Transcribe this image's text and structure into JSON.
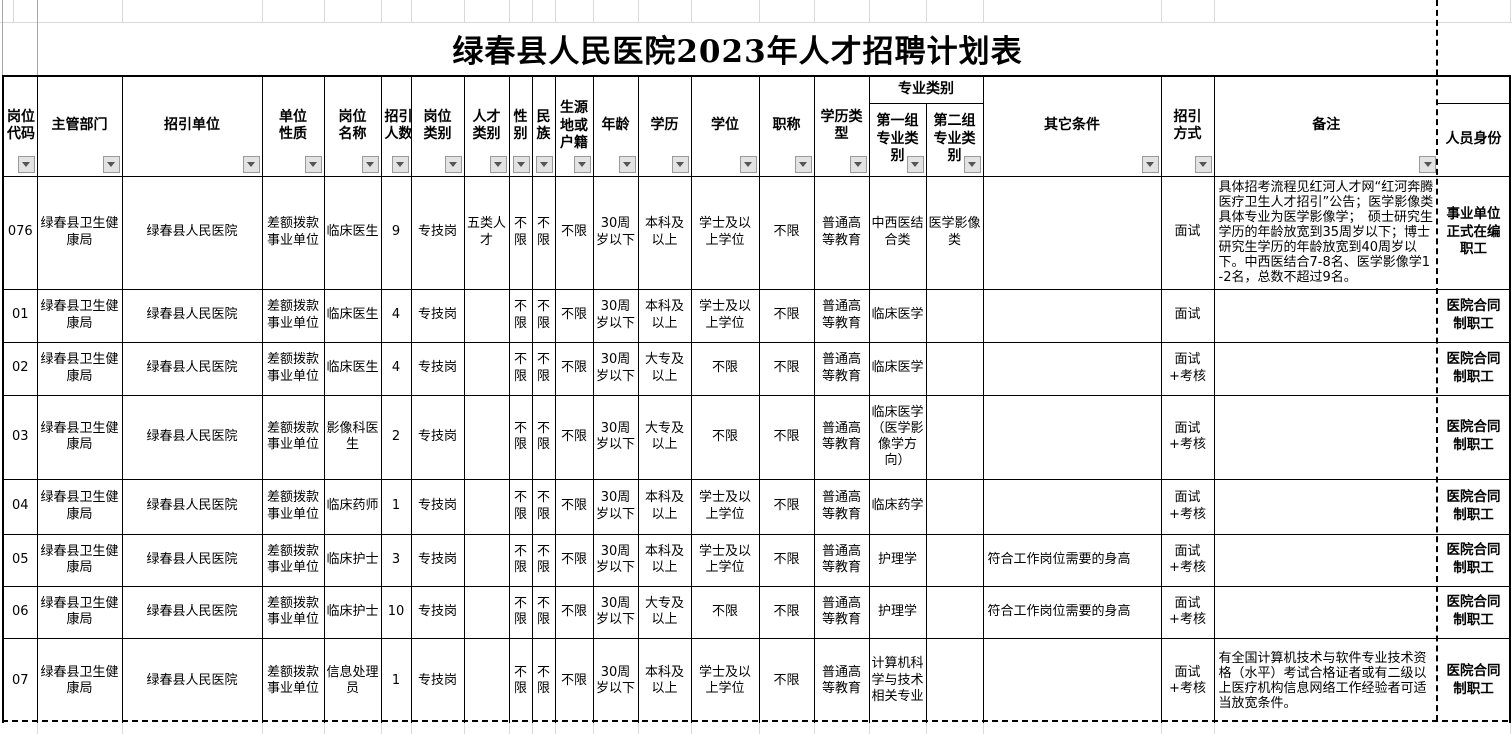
{
  "title": "绿春县人民医院2023年人才招聘计划表",
  "colors": {
    "border": "#000000",
    "gridline": "#d9d9d9",
    "filter_button_bg": "#e3e3e3",
    "filter_icon": "#555555"
  },
  "icons": {
    "filter": "filter-dropdown-icon"
  },
  "table": {
    "group_header": "专业类别",
    "columns": [
      {
        "key": "position-code",
        "label": "岗位代码"
      },
      {
        "key": "supervising-department",
        "label": "主管部门"
      },
      {
        "key": "recruiting-unit",
        "label": "招引单位"
      },
      {
        "key": "unit-nature",
        "label": "单位性质"
      },
      {
        "key": "position-name",
        "label": "岗位名称"
      },
      {
        "key": "recruit-count",
        "label": "招引人数"
      },
      {
        "key": "position-category",
        "label": "岗位类别"
      },
      {
        "key": "talent-category",
        "label": "人才类别"
      },
      {
        "key": "gender",
        "label": "性别"
      },
      {
        "key": "ethnicity",
        "label": "民族"
      },
      {
        "key": "origin-or-registration",
        "label": "生源地或户籍"
      },
      {
        "key": "age",
        "label": "年龄"
      },
      {
        "key": "education",
        "label": "学历"
      },
      {
        "key": "degree",
        "label": "学位"
      },
      {
        "key": "professional-title",
        "label": "职称"
      },
      {
        "key": "education-type",
        "label": "学历类型"
      },
      {
        "key": "major-group-1",
        "label": "第一组专业类别"
      },
      {
        "key": "major-group-2",
        "label": "第二组专业类别"
      },
      {
        "key": "other-conditions",
        "label": "其它条件"
      },
      {
        "key": "recruit-method",
        "label": "招引方式"
      },
      {
        "key": "remarks",
        "label": "备注"
      },
      {
        "key": "personnel-identity",
        "label": "人员身份"
      }
    ],
    "rows": [
      [
        "076",
        "绿春县卫生健康局",
        "绿春县人民医院",
        "差额拨款事业单位",
        "临床医生",
        "9",
        "专技岗",
        "五类人才",
        "不限",
        "不限",
        "不限",
        "30周岁以下",
        "本科及以上",
        "学士及以上学位",
        "不限",
        "普通高等教育",
        "中西医结合类",
        "医学影像类",
        "",
        "面试",
        "具体招考流程见红河人才网“红河奔腾医疗卫生人才招引”公告；医学影像类具体专业为医学影像学；　硕士研究生学历的年龄放宽到35周岁以下；博士研究生学历的年龄放宽到40周岁以下。中西医结合7-8名、医学影像学1-2名，总数不超过9名。",
        "事业单位正式在编职工"
      ],
      [
        "01",
        "绿春县卫生健康局",
        "绿春县人民医院",
        "差额拨款事业单位",
        "临床医生",
        "4",
        "专技岗",
        "",
        "不限",
        "不限",
        "不限",
        "30周岁以下",
        "本科及以上",
        "学士及以上学位",
        "不限",
        "普通高等教育",
        "临床医学",
        "",
        "",
        "面试",
        "",
        "医院合同制职工"
      ],
      [
        "02",
        "绿春县卫生健康局",
        "绿春县人民医院",
        "差额拨款事业单位",
        "临床医生",
        "4",
        "专技岗",
        "",
        "不限",
        "不限",
        "不限",
        "30周岁以下",
        "大专及以上",
        "不限",
        "不限",
        "普通高等教育",
        "临床医学",
        "",
        "",
        "面试+考核",
        "",
        "医院合同制职工"
      ],
      [
        "03",
        "绿春县卫生健康局",
        "绿春县人民医院",
        "差额拨款事业单位",
        "影像科医生",
        "2",
        "专技岗",
        "",
        "不限",
        "不限",
        "不限",
        "30周岁以下",
        "大专及以上",
        "不限",
        "不限",
        "普通高等教育",
        "临床医学（医学影像学方向）",
        "",
        "",
        "面试+考核",
        "",
        "医院合同制职工"
      ],
      [
        "04",
        "绿春县卫生健康局",
        "绿春县人民医院",
        "差额拨款事业单位",
        "临床药师",
        "1",
        "专技岗",
        "",
        "不限",
        "不限",
        "不限",
        "30周岁以下",
        "本科及以上",
        "学士及以上学位",
        "不限",
        "普通高等教育",
        "临床药学",
        "",
        "",
        "面试+考核",
        "",
        "医院合同制职工"
      ],
      [
        "05",
        "绿春县卫生健康局",
        "绿春县人民医院",
        "差额拨款事业单位",
        "临床护士",
        "3",
        "专技岗",
        "",
        "不限",
        "不限",
        "不限",
        "30周岁以下",
        "本科及以上",
        "学士及以上学位",
        "不限",
        "普通高等教育",
        "护理学",
        "",
        "符合工作岗位需要的身高",
        "面试+考核",
        "",
        "医院合同制职工"
      ],
      [
        "06",
        "绿春县卫生健康局",
        "绿春县人民医院",
        "差额拨款事业单位",
        "临床护士",
        "10",
        "专技岗",
        "",
        "不限",
        "不限",
        "不限",
        "30周岁以下",
        "大专及以上",
        "不限",
        "不限",
        "普通高等教育",
        "护理学",
        "",
        "符合工作岗位需要的身高",
        "面试+考核",
        "",
        "医院合同制职工"
      ],
      [
        "07",
        "绿春县卫生健康局",
        "绿春县人民医院",
        "差额拨款事业单位",
        "信息处理员",
        "1",
        "专技岗",
        "",
        "不限",
        "不限",
        "不限",
        "30周岁以下",
        "本科及以上",
        "学士及以上学位",
        "不限",
        "普通高等教育",
        "计算机科学与技术相关专业",
        "",
        "",
        "面试+考核",
        "有全国计算机技术与软件专业技术资格（水平）考试合格证者或有二级以上医疗机构信息网络工作经验者可适当放宽条件。",
        "医院合同制职工"
      ]
    ]
  }
}
